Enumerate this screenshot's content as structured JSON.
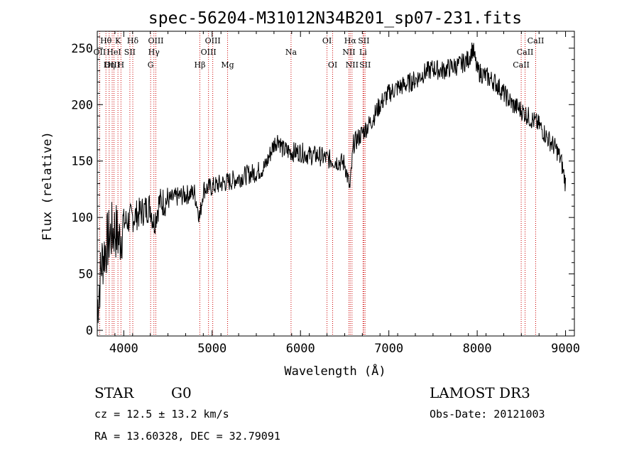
{
  "title": "spec-56204-M31012N34B201_sp07-231.fits",
  "info": {
    "class_label": "STAR",
    "subclass_label": "G0",
    "survey": "LAMOST DR3",
    "redshift_text": "cz = 12.5 ± 13.2 km/s",
    "obs_date_text": "Obs-Date: 20121003",
    "coords_text": "RA =  13.60328, DEC =  32.79091"
  },
  "chart_data": {
    "type": "line",
    "title": "spec-56204-M31012N34B201_sp07-231.fits",
    "xlabel": "Wavelength (Å)",
    "ylabel": "Flux (relative)",
    "xlim": [
      3700,
      9100
    ],
    "ylim": [
      -5,
      265
    ],
    "xticks": [
      4000,
      5000,
      6000,
      7000,
      8000,
      9000
    ],
    "yticks": [
      0,
      50,
      100,
      150,
      200,
      250
    ],
    "grid": false,
    "line_color": "#000000",
    "marker_color": "#cc0000",
    "series": [
      {
        "name": "flux",
        "x": [
          3700,
          3750,
          3800,
          3850,
          3900,
          3950,
          4000,
          4100,
          4200,
          4300,
          4340,
          4400,
          4500,
          4600,
          4700,
          4800,
          4860,
          4900,
          5000,
          5100,
          5200,
          5300,
          5400,
          5500,
          5600,
          5700,
          5750,
          5800,
          5900,
          6000,
          6100,
          6200,
          6300,
          6400,
          6500,
          6560,
          6600,
          6700,
          6800,
          6900,
          7000,
          7100,
          7200,
          7300,
          7400,
          7500,
          7600,
          7700,
          7800,
          7900,
          7950,
          8000,
          8100,
          8200,
          8300,
          8400,
          8500,
          8600,
          8700,
          8800,
          8900,
          8950,
          9000
        ],
        "y": [
          20,
          60,
          75,
          85,
          90,
          80,
          95,
          100,
          105,
          110,
          95,
          113,
          115,
          118,
          120,
          122,
          100,
          125,
          127,
          130,
          132,
          135,
          138,
          140,
          145,
          165,
          170,
          160,
          158,
          158,
          155,
          155,
          152,
          150,
          148,
          125,
          165,
          175,
          185,
          200,
          210,
          215,
          218,
          222,
          228,
          232,
          230,
          233,
          235,
          240,
          250,
          230,
          225,
          220,
          210,
          200,
          195,
          188,
          182,
          170,
          160,
          150,
          130
        ]
      }
    ],
    "lines": [
      {
        "name": "Hθ",
        "wave": 3798,
        "row": 0
      },
      {
        "name": "OII",
        "wave": 3727,
        "row": 1
      },
      {
        "name": "OIII",
        "wave": 3869,
        "row": 2
      },
      {
        "name": "K",
        "wave": 3934,
        "row": 0
      },
      {
        "name": "HeI",
        "wave": 3889,
        "row": 1
      },
      {
        "name": "Hη",
        "wave": 3835,
        "row": 2
      },
      {
        "name": "SII",
        "wave": 4069,
        "row": 1
      },
      {
        "name": "H",
        "wave": 3968,
        "row": 2
      },
      {
        "name": "Hδ",
        "wave": 4102,
        "row": 0
      },
      {
        "name": "OIII",
        "wave": 4363,
        "row": 0
      },
      {
        "name": "Hγ",
        "wave": 4341,
        "row": 1
      },
      {
        "name": "G",
        "wave": 4304,
        "row": 2
      },
      {
        "name": "OIII",
        "wave": 5007,
        "row": 0
      },
      {
        "name": "OIII",
        "wave": 4959,
        "row": 1
      },
      {
        "name": "Hβ",
        "wave": 4861,
        "row": 2
      },
      {
        "name": "Mg",
        "wave": 5175,
        "row": 2
      },
      {
        "name": "Na",
        "wave": 5893,
        "row": 1
      },
      {
        "name": "OI",
        "wave": 6300,
        "row": 0
      },
      {
        "name": "OI",
        "wave": 6364,
        "row": 2
      },
      {
        "name": "Hα",
        "wave": 6563,
        "row": 0
      },
      {
        "name": "NII",
        "wave": 6548,
        "row": 1
      },
      {
        "name": "NII",
        "wave": 6583,
        "row": 2
      },
      {
        "name": "SII",
        "wave": 6716,
        "row": 0
      },
      {
        "name": "Li",
        "wave": 6708,
        "row": 1
      },
      {
        "name": "SII",
        "wave": 6731,
        "row": 2
      },
      {
        "name": "CaII",
        "wave": 8662,
        "row": 0
      },
      {
        "name": "CaII",
        "wave": 8542,
        "row": 1
      },
      {
        "name": "CaII",
        "wave": 8498,
        "row": 2
      }
    ]
  }
}
